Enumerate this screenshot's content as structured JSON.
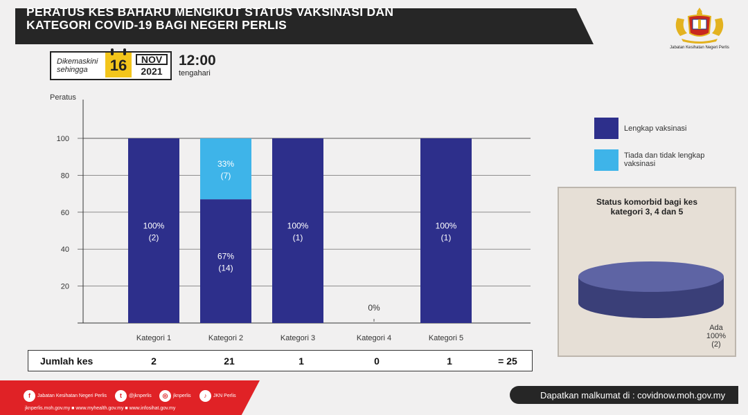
{
  "header": {
    "title_line1": "PERATUS KES BAHARU MENGIKUT STATUS VAKSINASI  DAN",
    "title_line2": "KATEGORI COVID-19 BAGI NEGERI PERLIS",
    "agency": "Jabatan Kesihatan Negeri Perlis"
  },
  "update": {
    "label_line1": "Dikemaskini",
    "label_line2": "sehingga",
    "day": "16",
    "month": "NOV",
    "year": "2021",
    "time": "12:00",
    "time_note": "tengahari"
  },
  "chart_data": {
    "type": "bar",
    "stacked": true,
    "ylabel": "Peratus",
    "ylim": [
      0,
      120
    ],
    "yticks": [
      20,
      40,
      60,
      80,
      100
    ],
    "grid": true,
    "categories": [
      "Kategori 1",
      "Kategori 2",
      "Kategori 3",
      "Kategori 4",
      "Kategori 5"
    ],
    "series": [
      {
        "name": "Lengkap vaksinasi",
        "values": [
          100,
          67,
          100,
          0,
          100
        ],
        "counts": [
          2,
          14,
          1,
          0,
          1
        ],
        "color": "#2d2f8b"
      },
      {
        "name": "Tiada dan tidak lengkap vaksinasi",
        "values": [
          0,
          33,
          0,
          0,
          0
        ],
        "counts": [
          0,
          7,
          0,
          0,
          0
        ],
        "color": "#3eb4e9"
      }
    ],
    "bar_labels": [
      {
        "category": "Kategori 1",
        "series": 0,
        "pct": "100%",
        "count": "(2)"
      },
      {
        "category": "Kategori 2",
        "series": 1,
        "pct": "33%",
        "count": "(7)"
      },
      {
        "category": "Kategori 2",
        "series": 0,
        "pct": "67%",
        "count": "(14)"
      },
      {
        "category": "Kategori 3",
        "series": 0,
        "pct": "100%",
        "count": "(1)"
      },
      {
        "category": "Kategori 4",
        "series": 0,
        "pct": "0%",
        "count": ""
      },
      {
        "category": "Kategori 5",
        "series": 0,
        "pct": "100%",
        "count": "(1)"
      }
    ],
    "legend_position": "right"
  },
  "legend": {
    "items": [
      {
        "label": "Lengkap vaksinasi",
        "color": "#2d2f8b"
      },
      {
        "label": "Tiada dan tidak lengkap vaksinasi",
        "color": "#3eb4e9"
      }
    ]
  },
  "comorbid": {
    "title_line1": "Status komorbid bagi kes",
    "title_line2": "kategori 3, 4 dan 5",
    "chart_data": {
      "type": "pie",
      "slices": [
        {
          "label": "Ada",
          "value": 100,
          "count": 2
        }
      ]
    },
    "label": "Ada",
    "pct": "100%",
    "count": "(2)",
    "color": "#4a5190"
  },
  "totals": {
    "label": "Jumlah kes",
    "values": [
      "2",
      "21",
      "1",
      "0",
      "1"
    ],
    "grand_total": "= 25"
  },
  "footer": {
    "social": [
      {
        "icon": "facebook-icon",
        "glyph": "f",
        "label": "Jabatan Kesihatan Negeri Perlis"
      },
      {
        "icon": "twitter-icon",
        "glyph": "t",
        "label": "@jknperlis"
      },
      {
        "icon": "instagram-icon",
        "glyph": "◎",
        "label": "jknperlis"
      },
      {
        "icon": "tiktok-icon",
        "glyph": "♪",
        "label": "JKN Perlis"
      }
    ],
    "urls": "jknperlis.moh.gov.my ■ www.myhealth.gov.my ■ www.infosihat.gov.my",
    "info": "Dapatkan malkumat di : covidnow.moh.gov.my"
  },
  "colors": {
    "dark_banner": "#262626",
    "footer_red": "#e02226",
    "calendar_yellow": "#f3c51b"
  }
}
